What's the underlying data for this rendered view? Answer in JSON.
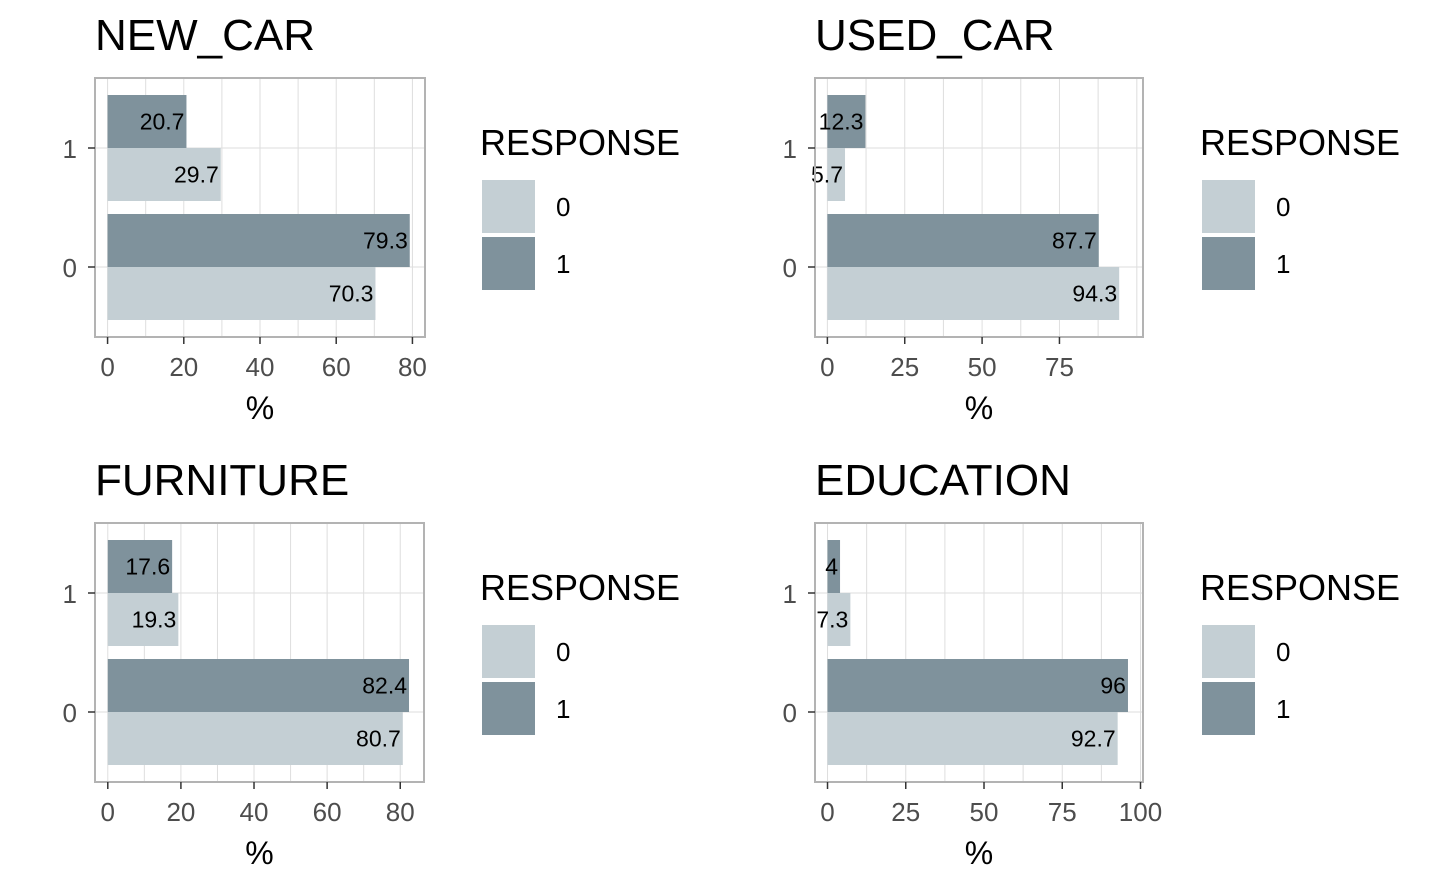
{
  "chart_data": [
    {
      "type": "bar",
      "orientation": "horizontal",
      "title": "NEW_CAR",
      "xlabel": "%",
      "ylabel": "",
      "categories": [
        "0",
        "1"
      ],
      "xlim": [
        -3.3,
        83.3
      ],
      "xticks": [
        0,
        20,
        40,
        60,
        80
      ],
      "grid": true,
      "series": [
        {
          "name": "0",
          "values": [
            70.3,
            29.7
          ],
          "labels": [
            "70.3",
            "29.7"
          ]
        },
        {
          "name": "1",
          "values": [
            79.3,
            20.7
          ],
          "labels": [
            "79.3",
            "20.7"
          ]
        }
      ],
      "legend": {
        "title": "RESPONSE",
        "entries": [
          "0",
          "1"
        ],
        "placement": "right"
      }
    },
    {
      "type": "bar",
      "orientation": "horizontal",
      "title": "USED_CAR",
      "xlabel": "%",
      "ylabel": "",
      "categories": [
        "0",
        "1"
      ],
      "xlim": [
        -4.0,
        102.0
      ],
      "xticks": [
        0,
        25,
        50,
        75
      ],
      "grid": true,
      "series": [
        {
          "name": "0",
          "values": [
            94.3,
            5.7
          ],
          "labels": [
            "94.3",
            "5.7"
          ]
        },
        {
          "name": "1",
          "values": [
            87.7,
            12.3
          ],
          "labels": [
            "87.7",
            "12.3"
          ]
        }
      ],
      "legend": {
        "title": "RESPONSE",
        "entries": [
          "0",
          "1"
        ],
        "placement": "right"
      }
    },
    {
      "type": "bar",
      "orientation": "horizontal",
      "title": "FURNITURE",
      "xlabel": "%",
      "ylabel": "",
      "categories": [
        "0",
        "1"
      ],
      "xlim": [
        -3.5,
        86.5
      ],
      "xticks": [
        0,
        20,
        40,
        60,
        80
      ],
      "grid": true,
      "series": [
        {
          "name": "0",
          "values": [
            80.7,
            19.3
          ],
          "labels": [
            "80.7",
            "19.3"
          ]
        },
        {
          "name": "1",
          "values": [
            82.4,
            17.6
          ],
          "labels": [
            "82.4",
            "17.6"
          ]
        }
      ],
      "legend": {
        "title": "RESPONSE",
        "entries": [
          "0",
          "1"
        ],
        "placement": "right"
      }
    },
    {
      "type": "bar",
      "orientation": "horizontal",
      "title": "EDUCATION",
      "xlabel": "%",
      "ylabel": "",
      "categories": [
        "0",
        "1"
      ],
      "xlim": [
        -4.0,
        100.8
      ],
      "xticks": [
        0,
        25,
        50,
        75,
        100
      ],
      "grid": true,
      "series": [
        {
          "name": "0",
          "values": [
            92.7,
            7.3
          ],
          "labels": [
            "92.7",
            "7.3"
          ]
        },
        {
          "name": "1",
          "values": [
            96,
            4
          ],
          "labels": [
            "96",
            "4"
          ]
        }
      ],
      "legend": {
        "title": "RESPONSE",
        "entries": [
          "0",
          "1"
        ],
        "placement": "right"
      }
    }
  ],
  "colors": {
    "response_0": "#c4cfd4",
    "response_1": "#7f929c",
    "grid": "#dedede",
    "panel_border": "#b3b3b3"
  }
}
